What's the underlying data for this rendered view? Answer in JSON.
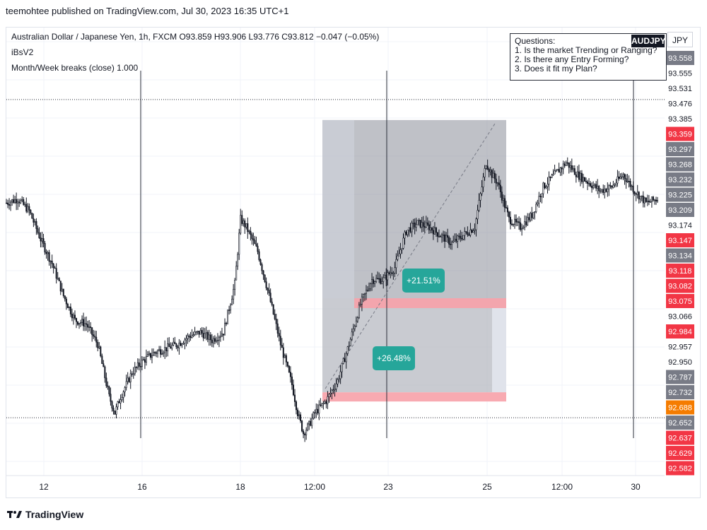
{
  "header": {
    "published": "teemohtee published on TradingView.com, Jul 30, 2023 16:35 UTC+1"
  },
  "legend": {
    "ohlc": "Australian Dollar / Japanese Yen, 1h, FXCM  O93.859  H93.906  L93.776  C93.812  −0.047 (−0.05%)",
    "indicator1": "iBsV2",
    "indicator2": "Month/Week breaks (close)  1.000"
  },
  "questions": {
    "title": "Questions:",
    "items": [
      "1. Is the market Trending or Ranging?",
      "2. Is there any Entry Forming?",
      "3. Does it fit my Plan?"
    ]
  },
  "symbol_badge": "AUDJPY",
  "currency_button": "JPY",
  "footer": {
    "brand": "TradingView"
  },
  "colors": {
    "up": "#131722",
    "down": "#131722",
    "gray_label": "#787b86",
    "red_label": "#f23645",
    "orange_label": "#f57c00",
    "teal": "#26a69a"
  },
  "chart_data": {
    "type": "line",
    "subtype": "candlestick",
    "symbol": "AUDJPY",
    "timeframe": "1h",
    "ylim": [
      92.55,
      93.6
    ],
    "x_ticks": [
      "12",
      "16",
      "18",
      "12:00",
      "23",
      "25",
      "12:00",
      "30"
    ],
    "price_labels": [
      {
        "value": "93.558",
        "color": "gray"
      },
      {
        "value": "93.555",
        "color": "white"
      },
      {
        "value": "93.531",
        "color": "white"
      },
      {
        "value": "93.476",
        "color": "white"
      },
      {
        "value": "93.385",
        "color": "white"
      },
      {
        "value": "93.359",
        "color": "red"
      },
      {
        "value": "93.297",
        "color": "gray"
      },
      {
        "value": "93.268",
        "color": "gray"
      },
      {
        "value": "93.232",
        "color": "gray"
      },
      {
        "value": "93.225",
        "color": "gray"
      },
      {
        "value": "93.209",
        "color": "gray"
      },
      {
        "value": "93.174",
        "color": "white"
      },
      {
        "value": "93.147",
        "color": "red"
      },
      {
        "value": "93.134",
        "color": "gray"
      },
      {
        "value": "93.118",
        "color": "red"
      },
      {
        "value": "93.082",
        "color": "red"
      },
      {
        "value": "93.075",
        "color": "red"
      },
      {
        "value": "93.066",
        "color": "white"
      },
      {
        "value": "92.984",
        "color": "red"
      },
      {
        "value": "92.957",
        "color": "white"
      },
      {
        "value": "92.950",
        "color": "white"
      },
      {
        "value": "92.787",
        "color": "gray"
      },
      {
        "value": "92.732",
        "color": "gray"
      },
      {
        "value": "92.688",
        "color": "orange"
      },
      {
        "value": "92.652",
        "color": "gray"
      },
      {
        "value": "92.637",
        "color": "red"
      },
      {
        "value": "92.629",
        "color": "red"
      },
      {
        "value": "92.582",
        "color": "red"
      }
    ],
    "price_path": [
      [
        0,
        93.22
      ],
      [
        2,
        93.23
      ],
      [
        4,
        93.2
      ],
      [
        6,
        93.13
      ],
      [
        8,
        93.07
      ],
      [
        10,
        92.99
      ],
      [
        12,
        92.93
      ],
      [
        14,
        92.92
      ],
      [
        16,
        92.87
      ],
      [
        18,
        92.74
      ],
      [
        19,
        92.7
      ],
      [
        20,
        92.74
      ],
      [
        22,
        92.8
      ],
      [
        24,
        92.83
      ],
      [
        26,
        92.85
      ],
      [
        28,
        92.86
      ],
      [
        30,
        92.87
      ],
      [
        32,
        92.89
      ],
      [
        34,
        92.9
      ],
      [
        36,
        92.88
      ],
      [
        38,
        92.9
      ],
      [
        40,
        93.02
      ],
      [
        41,
        93.18
      ],
      [
        42,
        93.16
      ],
      [
        44,
        93.1
      ],
      [
        46,
        92.99
      ],
      [
        48,
        92.87
      ],
      [
        50,
        92.77
      ],
      [
        51,
        92.7
      ],
      [
        52,
        92.65
      ],
      [
        53,
        92.67
      ],
      [
        54,
        92.7
      ],
      [
        56,
        92.73
      ],
      [
        58,
        92.78
      ],
      [
        60,
        92.87
      ],
      [
        62,
        92.97
      ],
      [
        64,
        93.03
      ],
      [
        66,
        93.03
      ],
      [
        68,
        93.06
      ],
      [
        70,
        93.15
      ],
      [
        72,
        93.17
      ],
      [
        74,
        93.16
      ],
      [
        76,
        93.14
      ],
      [
        78,
        93.12
      ],
      [
        80,
        93.14
      ],
      [
        82,
        93.16
      ],
      [
        84,
        93.32
      ],
      [
        85,
        93.29
      ],
      [
        86,
        93.27
      ],
      [
        88,
        93.18
      ],
      [
        90,
        93.16
      ],
      [
        92,
        93.19
      ],
      [
        94,
        93.26
      ],
      [
        96,
        93.29
      ],
      [
        98,
        93.32
      ],
      [
        100,
        93.29
      ],
      [
        102,
        93.27
      ],
      [
        104,
        93.25
      ],
      [
        106,
        93.26
      ],
      [
        108,
        93.29
      ],
      [
        110,
        93.25
      ],
      [
        112,
        93.22
      ],
      [
        114,
        93.23
      ]
    ],
    "levels": [
      {
        "name": "month-week-break-high",
        "value": 93.476,
        "style": "dotted"
      },
      {
        "name": "month-week-break-low",
        "value": 92.688,
        "style": "dotted"
      }
    ],
    "annotations": [
      {
        "label": "+21.51%",
        "color": "teal"
      },
      {
        "label": "+26.48%",
        "color": "teal"
      }
    ]
  }
}
